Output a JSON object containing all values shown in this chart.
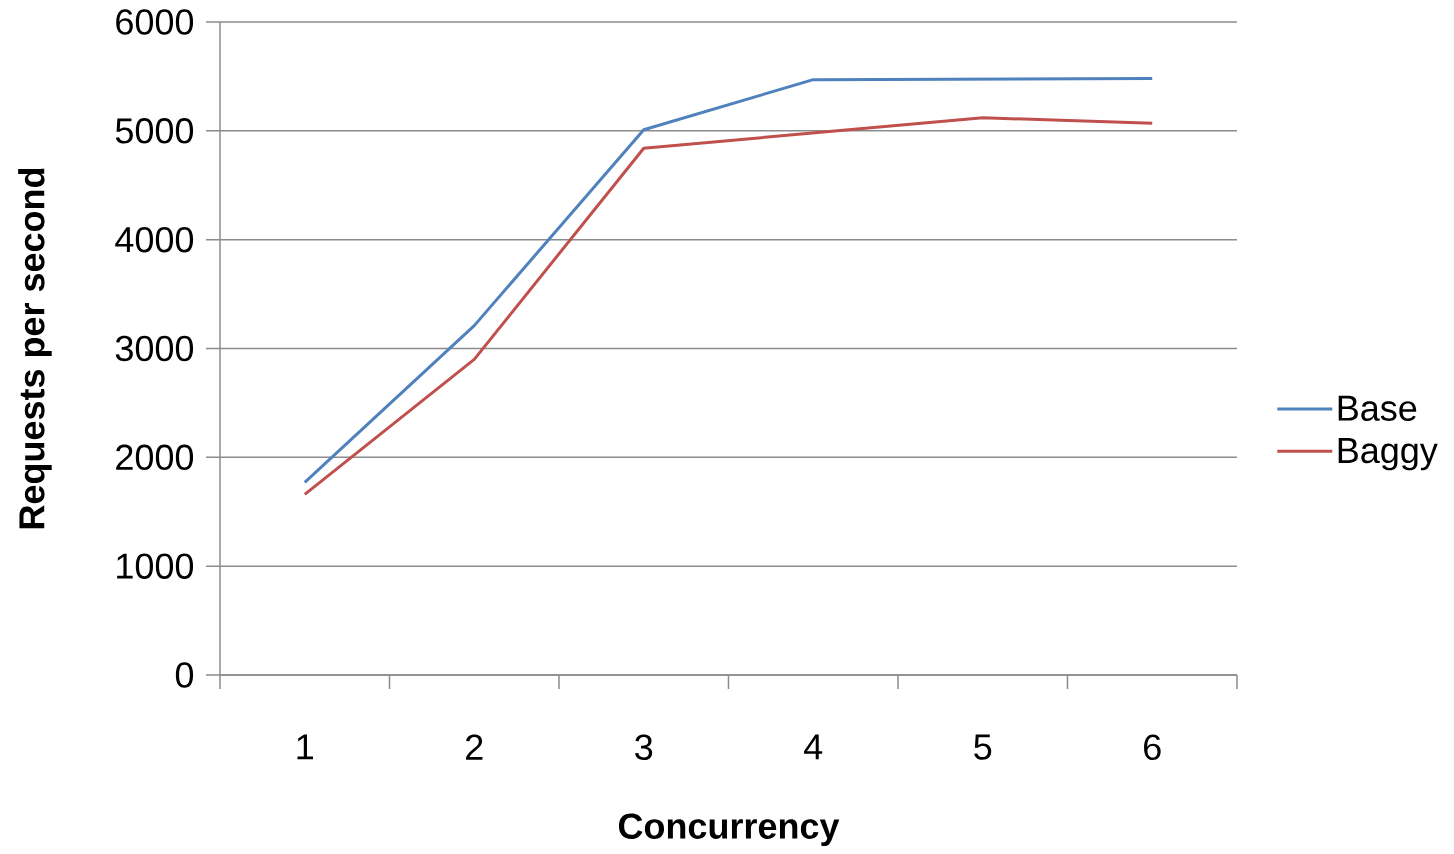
{
  "chart_data": {
    "type": "line",
    "xlabel": "Concurrency",
    "ylabel": "Requests per second",
    "categories": [
      "1",
      "2",
      "3",
      "4",
      "5",
      "6"
    ],
    "series": [
      {
        "name": "Base",
        "color": "#4f81bd",
        "values": [
          1770,
          3210,
          5010,
          5470,
          5475,
          5480
        ]
      },
      {
        "name": "Baggy",
        "color": "#c0504d",
        "values": [
          1660,
          2900,
          4840,
          4980,
          5120,
          5070
        ]
      }
    ],
    "ylim": [
      0,
      6000
    ],
    "yticks": [
      0,
      1000,
      2000,
      3000,
      4000,
      5000,
      6000
    ],
    "grid": "y",
    "legend": "right",
    "marker": "none",
    "line_style": "solid"
  }
}
